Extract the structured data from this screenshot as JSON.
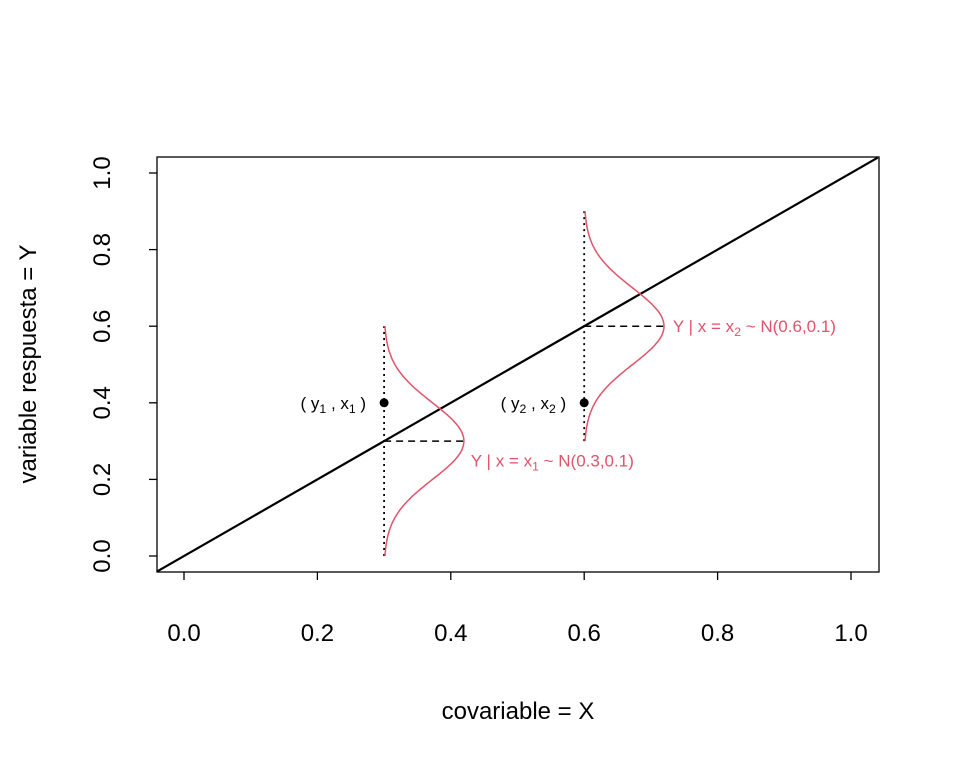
{
  "chart_data": {
    "type": "line",
    "title": "",
    "xlabel": "covariable = X",
    "ylabel": "variable respuesta = Y",
    "xlim": [
      -0.04,
      1.04
    ],
    "ylim": [
      -0.04,
      1.04
    ],
    "xticks": [
      "0.0",
      "0.2",
      "0.4",
      "0.6",
      "0.8",
      "1.0"
    ],
    "yticks": [
      "0.0",
      "0.2",
      "0.4",
      "0.6",
      "0.8",
      "1.0"
    ],
    "grid": false,
    "regression_line": {
      "intercept": 0,
      "slope": 1,
      "color": "#000000"
    },
    "points": [
      {
        "x": 0.3,
        "y": 0.4,
        "label_pre": "( y",
        "label_sub1": "1",
        "label_mid": " , x",
        "label_sub2": "1",
        "label_post": " )"
      },
      {
        "x": 0.6,
        "y": 0.4,
        "label_pre": "( y",
        "label_sub1": "2",
        "label_mid": " , x",
        "label_sub2": "2",
        "label_post": " )"
      }
    ],
    "densities": [
      {
        "x": 0.3,
        "mean": 0.3,
        "sd": 0.1,
        "label_pre": "Y | x = x",
        "label_sub": "1",
        "label_post": " ~ N(0.3,0.1)"
      },
      {
        "x": 0.6,
        "mean": 0.6,
        "sd": 0.1,
        "label_pre": "Y | x = x",
        "label_sub": "2",
        "label_post": " ~ N(0.6,0.1)"
      }
    ],
    "density_color": "#DF536B"
  }
}
